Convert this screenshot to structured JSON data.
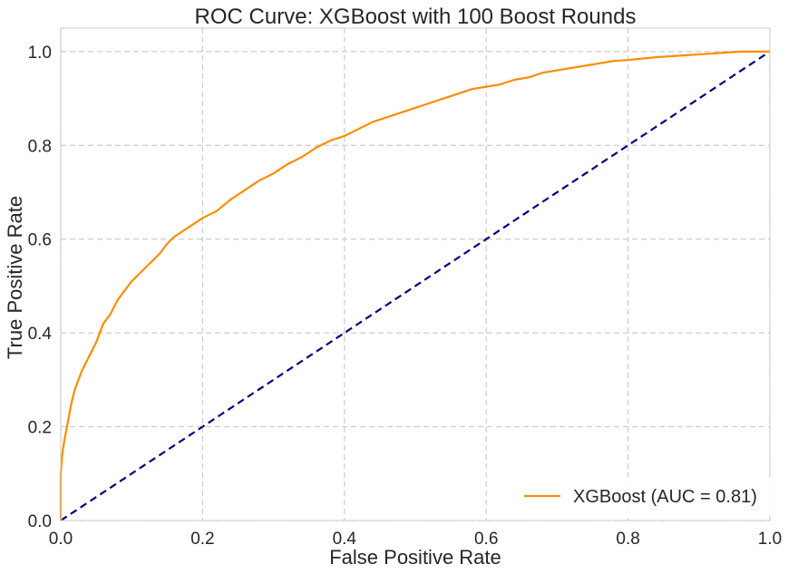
{
  "chart_data": {
    "type": "line",
    "title": "ROC Curve: XGBoost with 100 Boost Rounds",
    "xlabel": "False Positive Rate",
    "ylabel": "True Positive Rate",
    "xlim": [
      0.0,
      1.0
    ],
    "ylim": [
      0.0,
      1.05
    ],
    "x_ticks": [
      "0.0",
      "0.2",
      "0.4",
      "0.6",
      "0.8",
      "1.0"
    ],
    "y_ticks": [
      "0.0",
      "0.2",
      "0.4",
      "0.6",
      "0.8",
      "1.0"
    ],
    "x_tick_values": [
      0.0,
      0.2,
      0.4,
      0.6,
      0.8,
      1.0
    ],
    "y_tick_values": [
      0.0,
      0.2,
      0.4,
      0.6,
      0.8,
      1.0
    ],
    "grid": true,
    "legend_position": "lower-right",
    "series": [
      {
        "name": "XGBoost (AUC = 0.81)",
        "color": "#ff8c00",
        "style": "solid",
        "x": [
          0.0,
          0.0,
          0.002,
          0.005,
          0.01,
          0.015,
          0.02,
          0.03,
          0.04,
          0.05,
          0.06,
          0.07,
          0.08,
          0.09,
          0.1,
          0.12,
          0.14,
          0.15,
          0.16,
          0.18,
          0.2,
          0.22,
          0.24,
          0.26,
          0.28,
          0.3,
          0.32,
          0.34,
          0.36,
          0.38,
          0.4,
          0.42,
          0.44,
          0.46,
          0.48,
          0.5,
          0.52,
          0.54,
          0.56,
          0.58,
          0.6,
          0.62,
          0.64,
          0.66,
          0.68,
          0.7,
          0.72,
          0.74,
          0.76,
          0.78,
          0.8,
          0.82,
          0.84,
          0.86,
          0.88,
          0.9,
          0.92,
          0.94,
          0.96,
          0.98,
          1.0
        ],
        "y": [
          0.0,
          0.1,
          0.14,
          0.17,
          0.21,
          0.25,
          0.28,
          0.32,
          0.35,
          0.38,
          0.42,
          0.44,
          0.47,
          0.49,
          0.51,
          0.54,
          0.57,
          0.59,
          0.605,
          0.625,
          0.645,
          0.66,
          0.685,
          0.705,
          0.725,
          0.74,
          0.76,
          0.775,
          0.795,
          0.81,
          0.82,
          0.835,
          0.85,
          0.86,
          0.87,
          0.88,
          0.89,
          0.9,
          0.91,
          0.92,
          0.925,
          0.93,
          0.94,
          0.945,
          0.955,
          0.96,
          0.965,
          0.97,
          0.975,
          0.98,
          0.982,
          0.985,
          0.988,
          0.99,
          0.992,
          0.994,
          0.996,
          0.998,
          1.0,
          1.0,
          1.0
        ]
      },
      {
        "name": "",
        "color": "#000080",
        "style": "dashed",
        "x": [
          0.0,
          1.0
        ],
        "y": [
          0.0,
          1.0
        ]
      }
    ]
  }
}
